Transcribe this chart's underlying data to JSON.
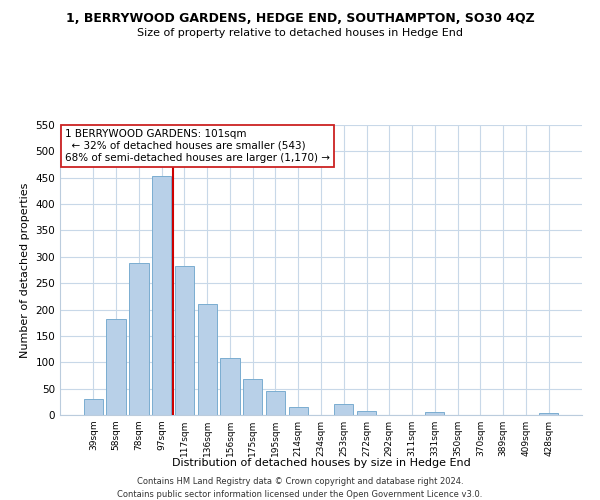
{
  "title": "1, BERRYWOOD GARDENS, HEDGE END, SOUTHAMPTON, SO30 4QZ",
  "subtitle": "Size of property relative to detached houses in Hedge End",
  "xlabel": "Distribution of detached houses by size in Hedge End",
  "ylabel": "Number of detached properties",
  "bar_labels": [
    "39sqm",
    "58sqm",
    "78sqm",
    "97sqm",
    "117sqm",
    "136sqm",
    "156sqm",
    "175sqm",
    "195sqm",
    "214sqm",
    "234sqm",
    "253sqm",
    "272sqm",
    "292sqm",
    "311sqm",
    "331sqm",
    "350sqm",
    "370sqm",
    "389sqm",
    "409sqm",
    "428sqm"
  ],
  "bar_values": [
    30,
    183,
    288,
    453,
    283,
    210,
    109,
    68,
    45,
    16,
    0,
    20,
    8,
    0,
    0,
    5,
    0,
    0,
    0,
    0,
    3
  ],
  "bar_color": "#b8d0e8",
  "bar_edge_color": "#7aadd0",
  "vline_x": 3.5,
  "vline_color": "#cc0000",
  "ylim": [
    0,
    550
  ],
  "yticks": [
    0,
    50,
    100,
    150,
    200,
    250,
    300,
    350,
    400,
    450,
    500,
    550
  ],
  "annotation_title": "1 BERRYWOOD GARDENS: 101sqm",
  "annotation_line1": "← 32% of detached houses are smaller (543)",
  "annotation_line2": "68% of semi-detached houses are larger (1,170) →",
  "footer1": "Contains HM Land Registry data © Crown copyright and database right 2024.",
  "footer2": "Contains public sector information licensed under the Open Government Licence v3.0.",
  "bg_color": "#ffffff",
  "grid_color": "#c8d8e8"
}
